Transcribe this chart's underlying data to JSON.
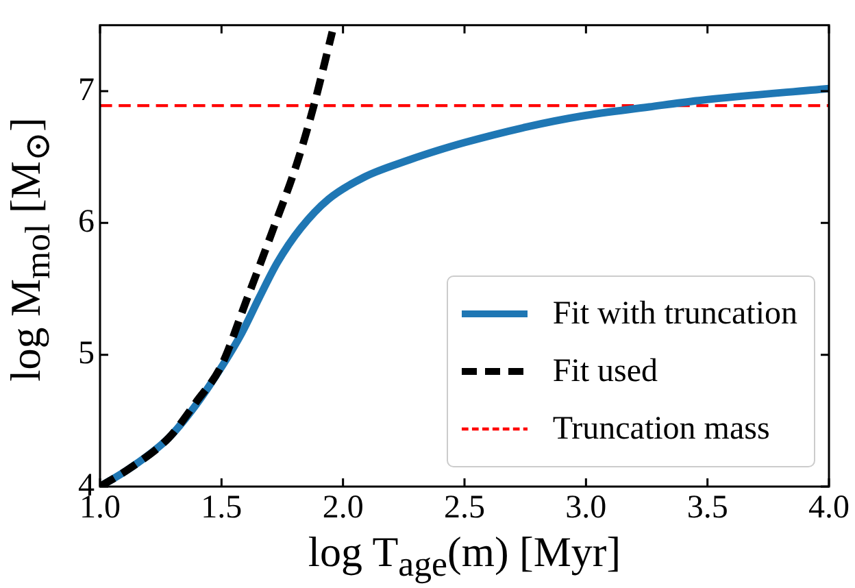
{
  "chart_data": {
    "type": "line",
    "xlabel": "log T$_{age}$(m) [Myr]",
    "ylabel": "log M$_{mol}$ [M$_{⊙}$]",
    "xlim": [
      1.0,
      4.0
    ],
    "ylim": [
      4,
      7.5
    ],
    "xticks": [
      {
        "value": 1.0,
        "label": "1.0"
      },
      {
        "value": 1.5,
        "label": "1.5"
      },
      {
        "value": 2.0,
        "label": "2.0"
      },
      {
        "value": 2.5,
        "label": "2.5"
      },
      {
        "value": 3.0,
        "label": "3.0"
      },
      {
        "value": 3.5,
        "label": "3.5"
      },
      {
        "value": 4.0,
        "label": "4.0"
      }
    ],
    "yticks": [
      4,
      5,
      6,
      7
    ],
    "series": [
      {
        "name": "Fit with truncation",
        "color": "#1f77b4",
        "line_style": "solid",
        "x": [
          1.0,
          1.124,
          1.283,
          1.395,
          1.508,
          1.582,
          1.657,
          1.73,
          1.826,
          1.94,
          2.09,
          2.275,
          2.39,
          2.5,
          2.76,
          2.98,
          3.26,
          3.47,
          4.0
        ],
        "values": [
          4.0,
          4.14,
          4.37,
          4.62,
          4.93,
          5.16,
          5.44,
          5.7,
          5.96,
          6.18,
          6.35,
          6.48,
          6.55,
          6.61,
          6.73,
          6.81,
          6.88,
          6.93,
          7.02
        ]
      },
      {
        "name": "Fit used",
        "color": "#000000",
        "line_style": "dashed",
        "x": [
          1.0,
          1.124,
          1.283,
          1.395,
          1.5,
          1.6,
          1.71,
          1.81,
          1.88,
          1.956
        ],
        "values": [
          4.0,
          4.14,
          4.37,
          4.64,
          4.92,
          5.4,
          5.94,
          6.45,
          6.89,
          7.45
        ]
      }
    ],
    "ref_lines": [
      {
        "axis": "y",
        "value": 6.89,
        "label": "Truncation mass",
        "color": "#ff0000",
        "line_style": "dashed"
      }
    ],
    "grid": false,
    "legend": "bottom right",
    "marker": "none"
  }
}
